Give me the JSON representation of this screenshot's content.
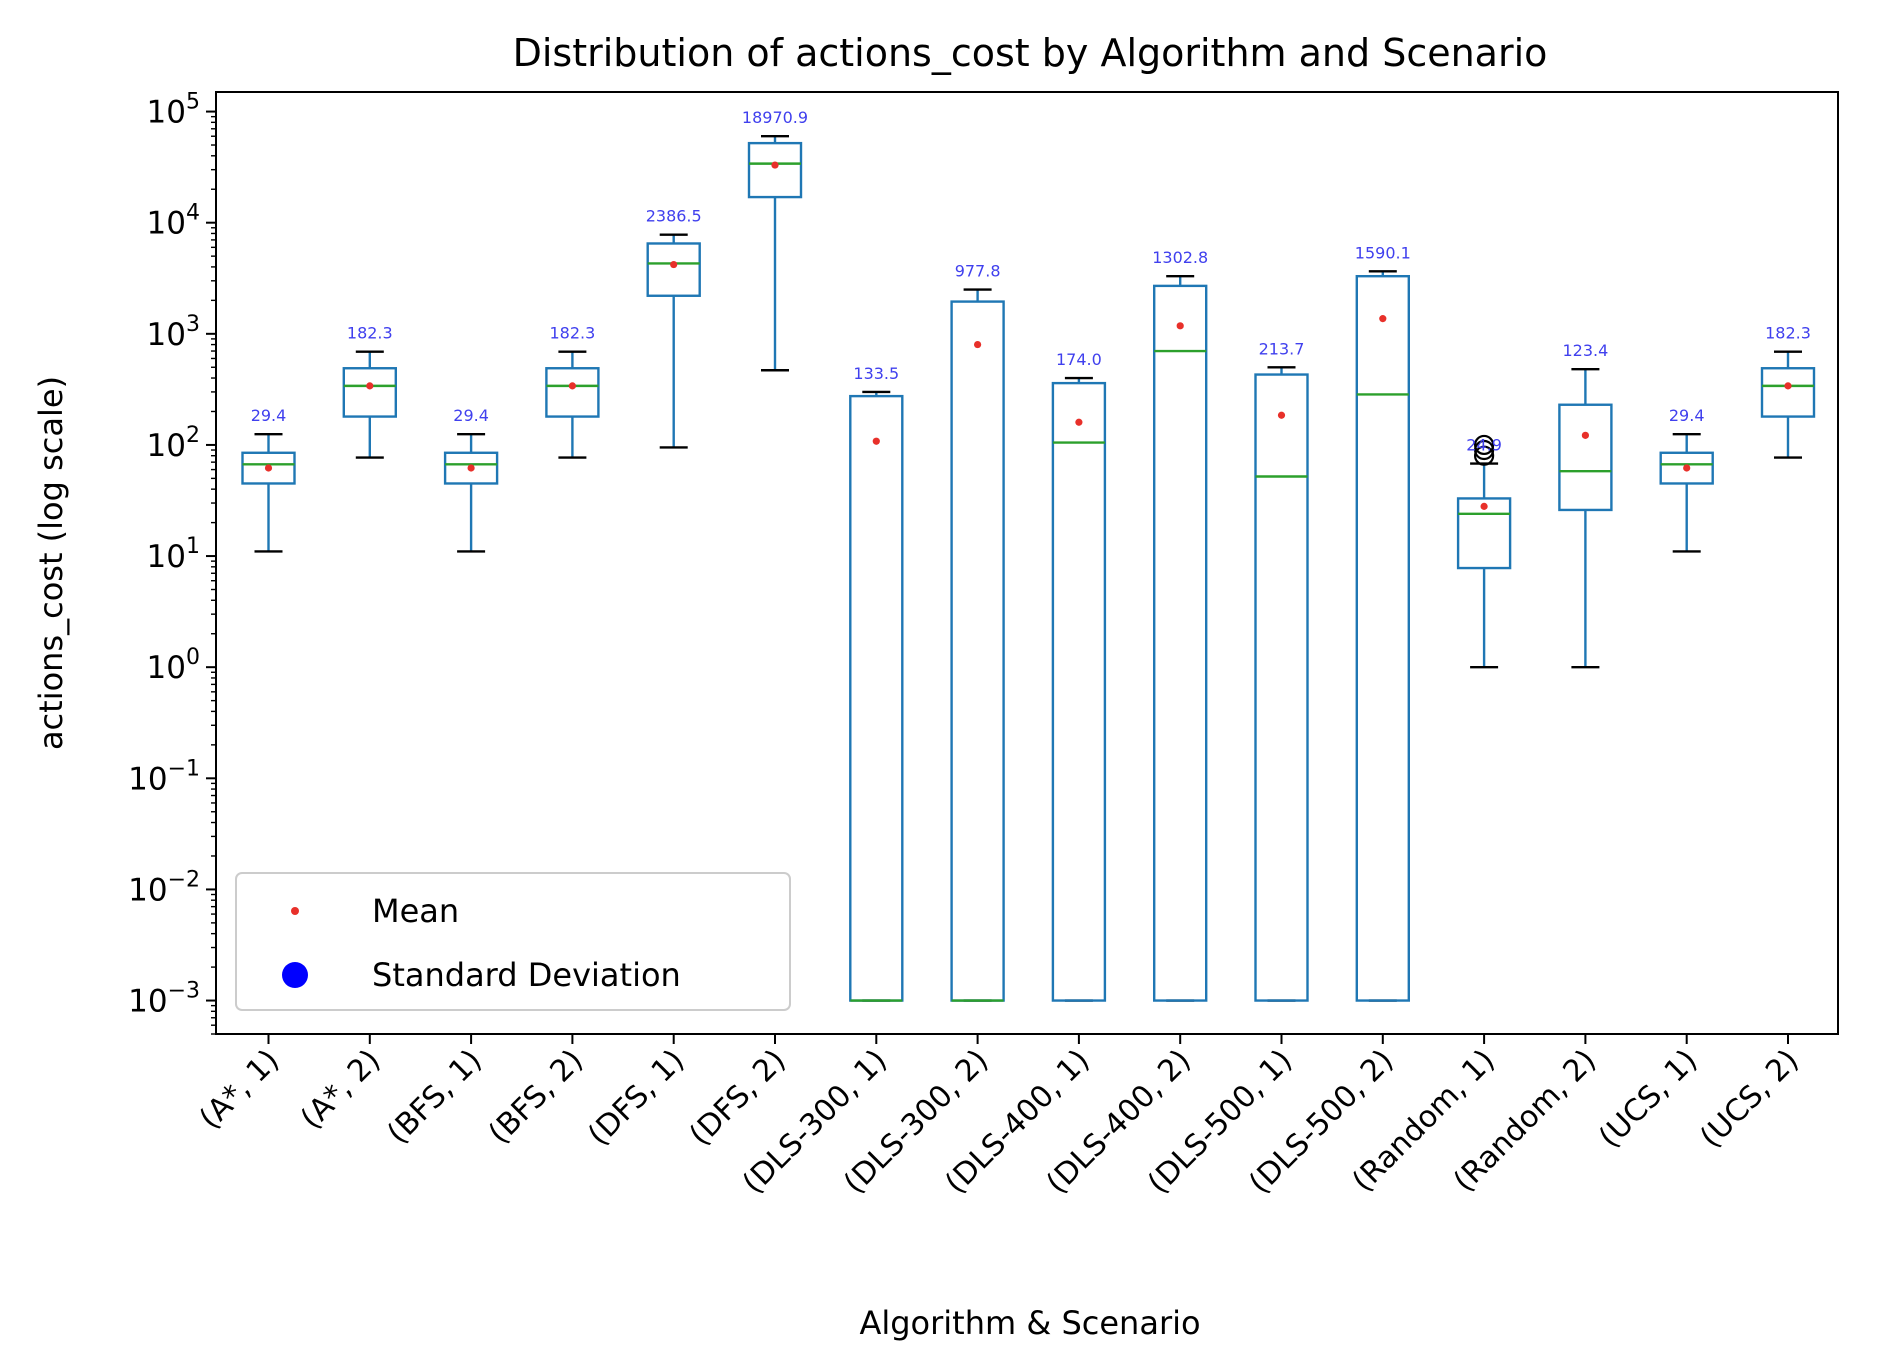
{
  "chart_data": {
    "type": "box",
    "title": "Distribution of actions_cost by Algorithm and Scenario",
    "xlabel": "Algorithm & Scenario",
    "ylabel": "actions_cost (log scale)",
    "y_scale": "log",
    "ylim": [
      0.0005,
      150000
    ],
    "y_ticks": [
      {
        "exp": -3,
        "base": "10",
        "sup": "−3"
      },
      {
        "exp": -2,
        "base": "10",
        "sup": "−2"
      },
      {
        "exp": -1,
        "base": "10",
        "sup": "−1"
      },
      {
        "exp": 0,
        "base": "10",
        "sup": "0"
      },
      {
        "exp": 1,
        "base": "10",
        "sup": "1"
      },
      {
        "exp": 2,
        "base": "10",
        "sup": "2"
      },
      {
        "exp": 3,
        "base": "10",
        "sup": "3"
      },
      {
        "exp": 4,
        "base": "10",
        "sup": "4"
      },
      {
        "exp": 5,
        "base": "10",
        "sup": "5"
      }
    ],
    "categories": [
      "(A*, 1)",
      "(A*, 2)",
      "(BFS, 1)",
      "(BFS, 2)",
      "(DFS, 1)",
      "(DFS, 2)",
      "(DLS-300, 1)",
      "(DLS-300, 2)",
      "(DLS-400, 1)",
      "(DLS-400, 2)",
      "(DLS-500, 1)",
      "(DLS-500, 2)",
      "(Random, 1)",
      "(Random, 2)",
      "(UCS, 1)",
      "(UCS, 2)"
    ],
    "boxes": [
      {
        "whislo": 11,
        "q1": 45,
        "med": 67,
        "q3": 85,
        "whishi": 125,
        "mean": 62,
        "std_label": "29.4",
        "fliers": []
      },
      {
        "whislo": 77,
        "q1": 180,
        "med": 340,
        "q3": 490,
        "whishi": 690,
        "mean": 340,
        "std_label": "182.3",
        "fliers": []
      },
      {
        "whislo": 11,
        "q1": 45,
        "med": 67,
        "q3": 85,
        "whishi": 125,
        "mean": 62,
        "std_label": "29.4",
        "fliers": []
      },
      {
        "whislo": 77,
        "q1": 180,
        "med": 340,
        "q3": 490,
        "whishi": 690,
        "mean": 340,
        "std_label": "182.3",
        "fliers": []
      },
      {
        "whislo": 95,
        "q1": 2200,
        "med": 4300,
        "q3": 6500,
        "whishi": 7800,
        "mean": 4200,
        "std_label": "2386.5",
        "fliers": []
      },
      {
        "whislo": 470,
        "q1": 17000,
        "med": 34000,
        "q3": 52000,
        "whishi": 60000,
        "mean": 33000,
        "std_label": "18970.9",
        "fliers": []
      },
      {
        "whislo": 0.001,
        "q1": 0.001,
        "med": 0.001,
        "q3": 275,
        "whishi": 300,
        "mean": 108,
        "std_label": "133.5",
        "fliers": []
      },
      {
        "whislo": 0.001,
        "q1": 0.001,
        "med": 0.001,
        "q3": 1950,
        "whishi": 2500,
        "mean": 800,
        "std_label": "977.8",
        "fliers": []
      },
      {
        "whislo": 0.001,
        "q1": 0.001,
        "med": 105,
        "q3": 360,
        "whishi": 400,
        "mean": 160,
        "std_label": "174.0",
        "fliers": []
      },
      {
        "whislo": 0.001,
        "q1": 0.001,
        "med": 700,
        "q3": 2700,
        "whishi": 3300,
        "mean": 1180,
        "std_label": "1302.8",
        "fliers": []
      },
      {
        "whislo": 0.001,
        "q1": 0.001,
        "med": 52,
        "q3": 430,
        "whishi": 500,
        "mean": 185,
        "std_label": "213.7",
        "fliers": []
      },
      {
        "whislo": 0.001,
        "q1": 0.001,
        "med": 285,
        "q3": 3300,
        "whishi": 3650,
        "mean": 1370,
        "std_label": "1590.1",
        "fliers": []
      },
      {
        "whislo": 1,
        "q1": 7.8,
        "med": 24,
        "q3": 33,
        "whishi": 68,
        "mean": 28,
        "std_label": "24.9",
        "fliers": [
          80,
          90,
          100
        ]
      },
      {
        "whislo": 1,
        "q1": 26,
        "med": 58,
        "q3": 230,
        "whishi": 480,
        "mean": 122,
        "std_label": "123.4",
        "fliers": []
      },
      {
        "whislo": 11,
        "q1": 45,
        "med": 67,
        "q3": 85,
        "whishi": 125,
        "mean": 62,
        "std_label": "29.4",
        "fliers": []
      },
      {
        "whislo": 77,
        "q1": 180,
        "med": 340,
        "q3": 490,
        "whishi": 690,
        "mean": 340,
        "std_label": "182.3",
        "fliers": []
      }
    ],
    "legend": {
      "position": "lower-left",
      "entries": [
        {
          "label": "Mean",
          "marker": "small-dot",
          "color": "#e8302a"
        },
        {
          "label": "Standard Deviation",
          "marker": "large-dot",
          "color": "#0000ff"
        }
      ]
    },
    "colors": {
      "box": "#1f77b4",
      "median": "#2ca02c",
      "mean": "#e8302a",
      "std_label": "#4040ee",
      "whisker_cap": "#000000"
    },
    "grid": false
  }
}
